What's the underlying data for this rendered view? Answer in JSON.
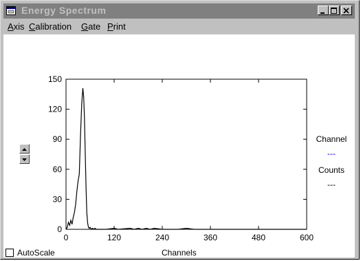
{
  "window": {
    "title": "Energy Spectrum",
    "title_icon": "window-app-icon",
    "buttons": [
      "minimize",
      "maximize",
      "close"
    ]
  },
  "menu": {
    "items": [
      {
        "label_first": "A",
        "label_rest": "xis"
      },
      {
        "label_first": "C",
        "label_rest": "alibration"
      },
      {
        "label_first": "G",
        "label_rest": "ate"
      },
      {
        "label_first": "P",
        "label_rest": "rint"
      }
    ]
  },
  "side_panel": {
    "channel_label": "Channel",
    "channel_value": "---",
    "counts_label": "Counts",
    "counts_value": "---",
    "channel_value_color": "#0000ff"
  },
  "autoscale": {
    "label": "AutoScale",
    "checked": false
  },
  "chart_data": {
    "type": "line",
    "title": "",
    "xlabel": "Channels",
    "ylabel": "",
    "xlim": [
      0,
      600
    ],
    "ylim": [
      0,
      150
    ],
    "x_ticks": [
      0,
      120,
      240,
      360,
      480,
      600
    ],
    "y_ticks": [
      0,
      30,
      60,
      90,
      120,
      150
    ],
    "grid": false,
    "line_color": "#000000",
    "series": [
      {
        "x": [
          0,
          3,
          6,
          9,
          12,
          15,
          18,
          21,
          24,
          27,
          30,
          33,
          36,
          39,
          42,
          44,
          46,
          48,
          50,
          52,
          54,
          56,
          58,
          60,
          63,
          66,
          69,
          72,
          76,
          80,
          90,
          100,
          120,
          130,
          160,
          170,
          180,
          190,
          200,
          210,
          220,
          240,
          260,
          280,
          300,
          320,
          360,
          400,
          440,
          480,
          520,
          560,
          600
        ],
        "y": [
          0,
          2,
          7,
          4,
          9,
          5,
          12,
          17,
          25,
          38,
          48,
          55,
          92,
          125,
          141,
          132,
          112,
          75,
          40,
          16,
          6,
          2,
          1,
          2,
          0,
          1,
          0,
          1,
          0,
          0,
          0,
          0,
          1,
          0,
          1,
          0,
          1,
          0,
          1,
          0,
          1,
          0,
          0,
          0,
          1,
          0,
          0,
          0,
          0,
          0,
          0,
          0,
          0
        ]
      }
    ]
  }
}
